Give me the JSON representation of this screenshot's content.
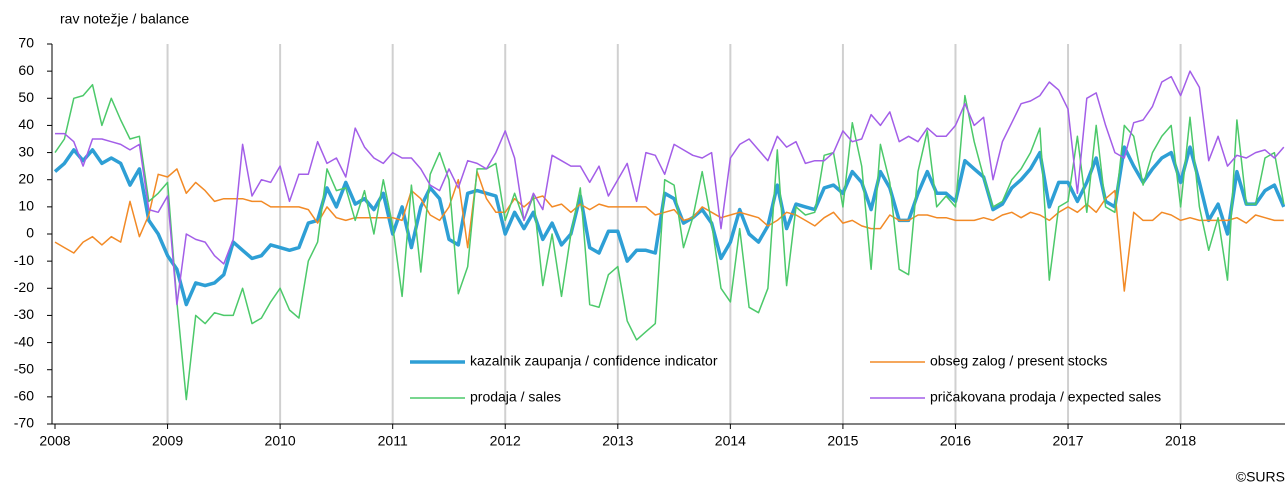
{
  "chart_data": {
    "type": "line",
    "title": "rav notežje / balance",
    "source": "©SURS",
    "categories": [
      "2008",
      null,
      null,
      null,
      null,
      null,
      null,
      null,
      null,
      null,
      null,
      null,
      "2009",
      null,
      null,
      null,
      null,
      null,
      null,
      null,
      null,
      null,
      null,
      null,
      "2010",
      null,
      null,
      null,
      null,
      null,
      null,
      null,
      null,
      null,
      null,
      null,
      "2011",
      null,
      null,
      null,
      null,
      null,
      null,
      null,
      null,
      null,
      null,
      null,
      "2012",
      null,
      null,
      null,
      null,
      null,
      null,
      null,
      null,
      null,
      null,
      null,
      "2013",
      null,
      null,
      null,
      null,
      null,
      null,
      null,
      null,
      null,
      null,
      null,
      "2014",
      null,
      null,
      null,
      null,
      null,
      null,
      null,
      null,
      null,
      null,
      null,
      "2015",
      null,
      null,
      null,
      null,
      null,
      null,
      null,
      null,
      null,
      null,
      null,
      "2016",
      null,
      null,
      null,
      null,
      null,
      null,
      null,
      null,
      null,
      null,
      null,
      "2017",
      null,
      null,
      null,
      null,
      null,
      null,
      null,
      null,
      null,
      null,
      null,
      "2018",
      null,
      null,
      null,
      null,
      null,
      null,
      null,
      null,
      null,
      null,
      null
    ],
    "ylim": [
      -70,
      70
    ],
    "yticks": [
      -70,
      -60,
      -50,
      -40,
      -30,
      -20,
      -10,
      0,
      10,
      20,
      30,
      40,
      50,
      60,
      70
    ],
    "grid": "x",
    "legend": "bottom",
    "series": [
      {
        "name": "kazalnik zaupanja / confidence indicator",
        "color": "#2e9fd5",
        "width": 3.5,
        "values": [
          23,
          26,
          31,
          27,
          31,
          26,
          28,
          26,
          18,
          24,
          5,
          0,
          -8,
          -13,
          -26,
          -18,
          -19,
          -18,
          -15,
          -3,
          -6,
          -9,
          -8,
          -4,
          -5,
          -6,
          -5,
          4,
          5,
          17,
          10,
          19,
          11,
          13,
          9,
          15,
          0,
          10,
          -5,
          10,
          17,
          13,
          -2,
          -4,
          15,
          16,
          15,
          14,
          0,
          8,
          2,
          8,
          -2,
          4,
          -4,
          0,
          14,
          -5,
          -7,
          1,
          1,
          -10,
          -6,
          -6,
          -7,
          15,
          13,
          4,
          6,
          9,
          4,
          -9,
          -3,
          9,
          0,
          -3,
          3,
          18,
          2,
          11,
          10,
          9,
          17,
          18,
          15,
          23,
          19,
          9,
          23,
          17,
          5,
          5,
          15,
          23,
          15,
          15,
          12,
          27,
          24,
          21,
          9,
          11,
          17,
          20,
          24,
          30,
          10,
          19,
          19,
          12,
          19,
          28,
          12,
          10,
          32,
          25,
          19,
          24,
          28,
          30,
          19,
          32,
          19,
          5,
          11,
          0,
          23,
          11,
          11,
          16,
          18,
          10
        ]
      },
      {
        "name": "obseg zalog / present stocks",
        "color": "#f28a26",
        "width": 1.5,
        "values": [
          -3,
          -5,
          -7,
          -3,
          -1,
          -4,
          -1,
          -3,
          12,
          -1,
          7,
          22,
          21,
          24,
          15,
          19,
          16,
          12,
          13,
          13,
          13,
          12,
          12,
          10,
          10,
          10,
          10,
          9,
          4,
          10,
          6,
          5,
          6,
          6,
          6,
          6,
          6,
          5,
          16,
          13,
          7,
          5,
          10,
          20,
          -5,
          23,
          13,
          8,
          8,
          13,
          10,
          13,
          14,
          10,
          11,
          8,
          11,
          9,
          11,
          10,
          10,
          10,
          10,
          10,
          7,
          8,
          9,
          5,
          6,
          10,
          8,
          6,
          7,
          8,
          7,
          6,
          3,
          5,
          8,
          7,
          5,
          3,
          6,
          8,
          4,
          5,
          3,
          2,
          2,
          7,
          5,
          5,
          7,
          7,
          6,
          6,
          5,
          5,
          5,
          6,
          5,
          7,
          8,
          6,
          8,
          7,
          5,
          8,
          10,
          8,
          11,
          8,
          13,
          16,
          -21,
          8,
          5,
          5,
          8,
          7,
          5,
          6,
          5,
          5,
          5,
          5,
          6,
          4,
          7,
          6,
          5,
          5
        ]
      },
      {
        "name": "prodaja / sales",
        "color": "#4cc96a",
        "width": 1.5,
        "values": [
          30,
          35,
          50,
          51,
          55,
          40,
          50,
          42,
          35,
          36,
          12,
          15,
          19,
          -25,
          -61,
          -30,
          -33,
          -29,
          -30,
          -30,
          -20,
          -33,
          -31,
          -25,
          -20,
          -28,
          -31,
          -10,
          -3,
          24,
          16,
          17,
          5,
          16,
          0,
          20,
          3,
          -23,
          18,
          -14,
          22,
          30,
          20,
          -22,
          -12,
          24,
          24,
          26,
          5,
          15,
          5,
          14,
          -19,
          0,
          -23,
          0,
          17,
          -26,
          -27,
          -15,
          -12,
          -32,
          -39,
          -36,
          -33,
          20,
          18,
          -5,
          6,
          23,
          4,
          -20,
          -25,
          2,
          -27,
          -29,
          -20,
          31,
          -19,
          10,
          7,
          8,
          29,
          30,
          10,
          41,
          25,
          -13,
          33,
          19,
          -13,
          -15,
          23,
          38,
          10,
          14,
          10,
          51,
          34,
          21,
          10,
          12,
          20,
          24,
          30,
          39,
          -17,
          10,
          12,
          36,
          8,
          40,
          10,
          8,
          40,
          36,
          18,
          30,
          36,
          40,
          10,
          43,
          10,
          -6,
          6,
          -17,
          42,
          11,
          11,
          28,
          30,
          11
        ]
      },
      {
        "name": "pričakovana prodaja / expected sales",
        "color": "#a35ee8",
        "width": 1.5,
        "values": [
          37,
          37,
          34,
          25,
          35,
          35,
          34,
          33,
          31,
          33,
          9,
          8,
          14,
          -26,
          0,
          -2,
          -3,
          -8,
          -11,
          -2,
          33,
          14,
          20,
          19,
          25,
          12,
          22,
          22,
          34,
          26,
          28,
          21,
          39,
          32,
          28,
          26,
          30,
          28,
          28,
          24,
          18,
          16,
          24,
          17,
          27,
          26,
          24,
          30,
          38,
          28,
          5,
          15,
          9,
          29,
          27,
          25,
          25,
          19,
          25,
          14,
          20,
          26,
          12,
          30,
          29,
          22,
          33,
          31,
          29,
          28,
          30,
          2,
          28,
          33,
          35,
          31,
          27,
          36,
          32,
          34,
          26,
          27,
          27,
          30,
          38,
          34,
          35,
          44,
          40,
          45,
          34,
          36,
          34,
          39,
          36,
          36,
          40,
          48,
          40,
          43,
          20,
          34,
          41,
          48,
          49,
          51,
          56,
          53,
          46,
          15,
          50,
          52,
          40,
          30,
          28,
          41,
          42,
          47,
          56,
          58,
          51,
          60,
          54,
          27,
          36,
          25,
          29,
          28,
          30,
          31,
          28,
          32
        ]
      }
    ]
  }
}
